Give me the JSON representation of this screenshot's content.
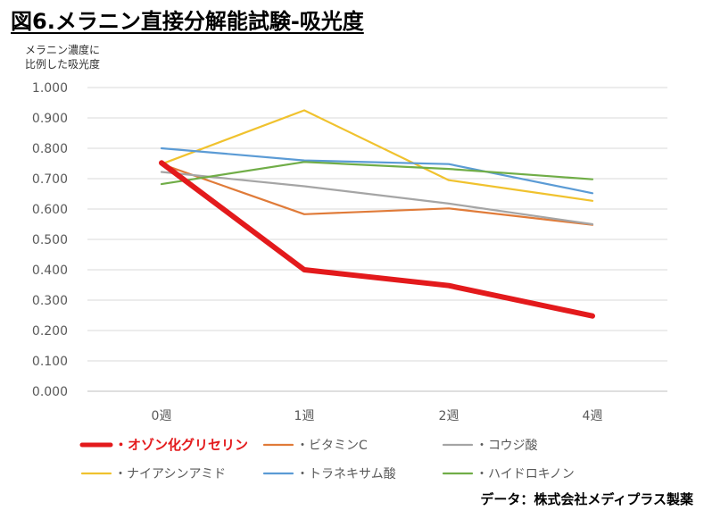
{
  "chart_data": {
    "type": "line",
    "title": "図6.メラニン直接分解能試験-吸光度",
    "ylabel_lines": [
      "メラニン濃度に",
      "比例した吸光度"
    ],
    "xlabel": "",
    "categories": [
      "0週",
      "1週",
      "2週",
      "4週"
    ],
    "y_ticks": [
      "0.000",
      "0.100",
      "0.200",
      "0.300",
      "0.400",
      "0.500",
      "0.600",
      "0.700",
      "0.800",
      "0.900",
      "1.000"
    ],
    "ylim": [
      0,
      1.0
    ],
    "grid": "horizontal",
    "legend_position": "bottom",
    "series": [
      {
        "name": "・オゾン化グリセリン",
        "color": "#e31a1c",
        "emphasis": true,
        "values": [
          0.752,
          0.4,
          0.348,
          0.248
        ]
      },
      {
        "name": "・ビタミンC",
        "color": "#e07b39",
        "values": [
          0.748,
          0.583,
          0.602,
          0.548
        ]
      },
      {
        "name": "・コウジ酸",
        "color": "#a5a5a5",
        "values": [
          0.722,
          0.675,
          0.618,
          0.55
        ]
      },
      {
        "name": "・ナイアシンアミド",
        "color": "#f0c22e",
        "values": [
          0.748,
          0.925,
          0.695,
          0.627
        ]
      },
      {
        "name": "・トラネキサム酸",
        "color": "#5b9bd5",
        "values": [
          0.8,
          0.76,
          0.748,
          0.652
        ]
      },
      {
        "name": "・ハイドロキノン",
        "color": "#70ad47",
        "values": [
          0.682,
          0.755,
          0.732,
          0.698
        ]
      }
    ],
    "source": "データ：株式会社メディプラス製薬"
  }
}
